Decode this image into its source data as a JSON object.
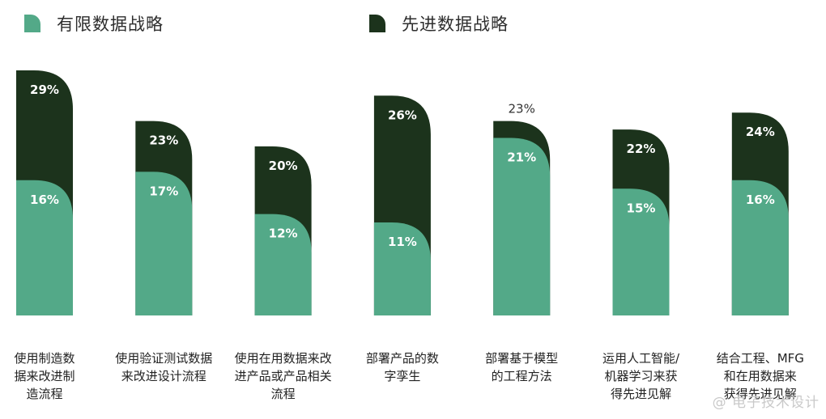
{
  "chart_data": {
    "type": "bar",
    "categories": [
      "使用制造数\n据来改进制\n造流程",
      "使用验证测试数据\n来改进设计流程",
      "使用在用数据来改\n进产品或产品相关\n流程",
      "部署产品的数\n字孪生",
      "部署基于模型\n的工程方法",
      "运用人工智能/\n机器学习来获\n得先进见解",
      "结合工程、MFG\n和在用数据来\n获得先进见解"
    ],
    "series": [
      {
        "name": "有限数据战略",
        "values": [
          16,
          17,
          12,
          11,
          21,
          15,
          16
        ],
        "color": "#53a988"
      },
      {
        "name": "先进数据战略",
        "values": [
          29,
          23,
          20,
          26,
          23,
          22,
          24
        ],
        "color": "#1c331c"
      }
    ],
    "value_labels_limited": [
      "16%",
      "17%",
      "12%",
      "11%",
      "21%",
      "15%",
      "16%"
    ],
    "value_labels_advanced": [
      "29%",
      "23%",
      "20%",
      "26%",
      "23%",
      "22%",
      "24%"
    ],
    "ylim": [
      0,
      30
    ],
    "legend_position": "top",
    "grid": false,
    "xlabel": "",
    "ylabel": ""
  },
  "watermark": "@ 电子技术设计"
}
